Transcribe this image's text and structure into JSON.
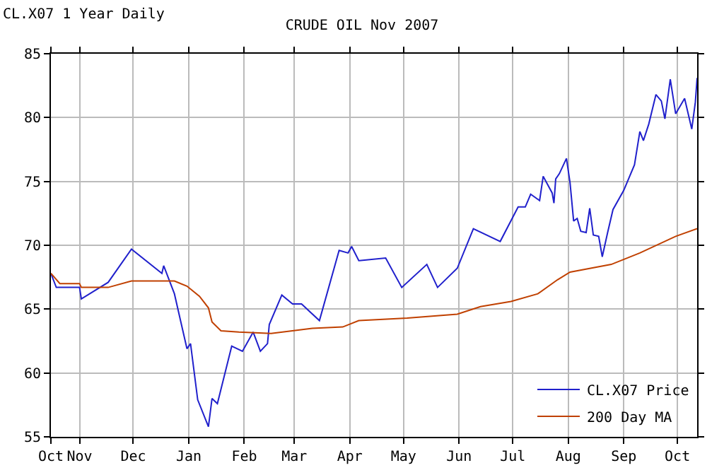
{
  "chart_data": {
    "type": "line",
    "title": "CRUDE OIL Nov 2007",
    "subtitle": "CL.X07 1 Year Daily",
    "xlim": [
      "2006-10-16",
      "2007-10-12"
    ],
    "xticks": [
      {
        "value": "2006-10-16",
        "label": "Oct"
      },
      {
        "value": "2006-11-01",
        "label": "Nov"
      },
      {
        "value": "2006-12-01",
        "label": "Dec"
      },
      {
        "value": "2007-01-01",
        "label": "Jan"
      },
      {
        "value": "2007-02-01",
        "label": "Feb"
      },
      {
        "value": "2007-03-01",
        "label": "Mar"
      },
      {
        "value": "2007-04-01",
        "label": "Apr"
      },
      {
        "value": "2007-05-01",
        "label": "May"
      },
      {
        "value": "2007-06-01",
        "label": "Jun"
      },
      {
        "value": "2007-07-01",
        "label": "Jul"
      },
      {
        "value": "2007-08-01",
        "label": "Aug"
      },
      {
        "value": "2007-09-01",
        "label": "Sep"
      },
      {
        "value": "2007-10-01",
        "label": "Oct"
      }
    ],
    "ylim": [
      55,
      85
    ],
    "yticks": [
      55,
      60,
      65,
      70,
      75,
      80,
      85
    ],
    "grid": true,
    "legend": "bottom right",
    "series": [
      {
        "name": "CL.X07 Price",
        "color": "#2020cc",
        "x": [
          "2006-10-16",
          "2006-10-19",
          "2006-10-21",
          "2006-11-01",
          "2006-11-02",
          "2006-11-17",
          "2006-11-30",
          "2006-12-17",
          "2006-12-18",
          "2006-12-24",
          "2006-12-31",
          "2007-01-02",
          "2007-01-06",
          "2007-01-12",
          "2007-01-14",
          "2007-01-17",
          "2007-01-25",
          "2007-01-31",
          "2007-02-06",
          "2007-02-10",
          "2007-02-14",
          "2007-02-15",
          "2007-02-22",
          "2007-02-28",
          "2007-03-05",
          "2007-03-15",
          "2007-03-26",
          "2007-03-31",
          "2007-04-02",
          "2007-04-06",
          "2007-04-21",
          "2007-04-30",
          "2007-05-14",
          "2007-05-20",
          "2007-05-31",
          "2007-06-09",
          "2007-06-24",
          "2007-07-04",
          "2007-07-08",
          "2007-07-11",
          "2007-07-16",
          "2007-07-18",
          "2007-07-23",
          "2007-07-24",
          "2007-07-25",
          "2007-07-27",
          "2007-07-31",
          "2007-08-02",
          "2007-08-04",
          "2007-08-06",
          "2007-08-08",
          "2007-08-11",
          "2007-08-13",
          "2007-08-15",
          "2007-08-18",
          "2007-08-20",
          "2007-08-23",
          "2007-08-26",
          "2007-09-01",
          "2007-09-07",
          "2007-09-10",
          "2007-09-12",
          "2007-09-15",
          "2007-09-19",
          "2007-09-22",
          "2007-09-24",
          "2007-09-27",
          "2007-09-30",
          "2007-10-05",
          "2007-10-09",
          "2007-10-11",
          "2007-10-12"
        ],
        "values": [
          67.8,
          66.7,
          66.7,
          66.7,
          65.8,
          67.1,
          69.7,
          67.8,
          68.4,
          66.2,
          61.9,
          62.3,
          57.9,
          55.8,
          58.0,
          57.6,
          62.1,
          61.7,
          63.2,
          61.7,
          62.3,
          63.8,
          66.1,
          65.4,
          65.4,
          64.1,
          69.6,
          69.4,
          69.9,
          68.8,
          69.0,
          66.7,
          68.5,
          66.7,
          68.2,
          71.3,
          70.3,
          73.0,
          73.0,
          74.0,
          73.5,
          75.4,
          74.1,
          73.3,
          75.2,
          75.6,
          76.8,
          74.9,
          71.9,
          72.1,
          71.1,
          71.0,
          72.9,
          70.8,
          70.7,
          69.1,
          71.0,
          72.8,
          74.3,
          76.3,
          78.9,
          78.2,
          79.5,
          81.8,
          81.3,
          79.9,
          83.0,
          80.3,
          81.5,
          79.1,
          81.2,
          83.1
        ]
      },
      {
        "name": "200 Day MA",
        "color": "#c04000",
        "x": [
          "2006-10-16",
          "2006-10-21",
          "2006-11-01",
          "2006-11-02",
          "2006-11-17",
          "2006-11-30",
          "2006-12-24",
          "2006-12-31",
          "2007-01-07",
          "2007-01-12",
          "2007-01-14",
          "2007-01-19",
          "2007-01-29",
          "2007-02-16",
          "2007-03-11",
          "2007-03-28",
          "2007-04-06",
          "2007-05-03",
          "2007-05-31",
          "2007-06-13",
          "2007-06-30",
          "2007-07-15",
          "2007-07-26",
          "2007-08-02",
          "2007-08-25",
          "2007-09-10",
          "2007-09-30",
          "2007-10-12"
        ],
        "values": [
          67.8,
          67.0,
          67.0,
          66.7,
          66.7,
          67.2,
          67.2,
          66.8,
          66.0,
          65.1,
          64.0,
          63.3,
          63.2,
          63.1,
          63.5,
          63.6,
          64.1,
          64.3,
          64.6,
          65.2,
          65.6,
          66.2,
          67.3,
          67.9,
          68.5,
          69.4,
          70.7,
          71.3
        ]
      }
    ]
  }
}
